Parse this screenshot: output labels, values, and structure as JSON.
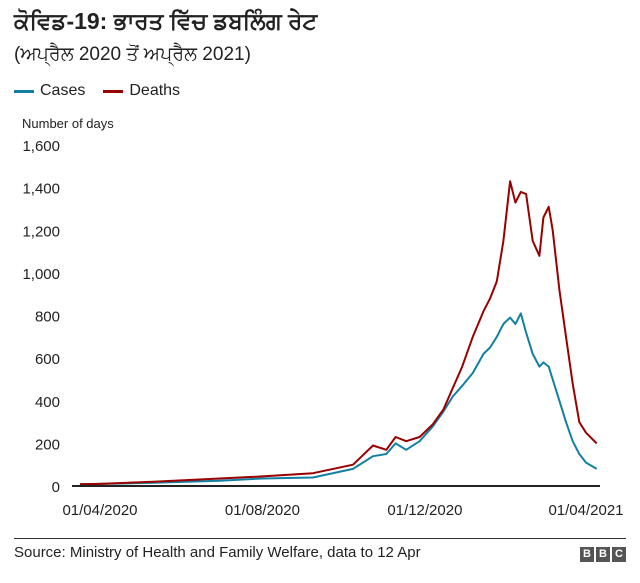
{
  "header": {
    "title": "ਕੋਵਿਡ-19: ਭਾਰਤ ਵਿੱਚ ਡਬਲਿੰਗ ਰੇਟ",
    "subtitle": "(ਅਪ੍ਰੈਲ 2020 ਤੋਂ ਅਪ੍ਰੈਲ 2021)"
  },
  "footer": {
    "source": "Source: Ministry of Health and Family Welfare, data to 12 Apr",
    "logo_letters": [
      "B",
      "B",
      "C"
    ]
  },
  "chart_data": {
    "type": "line",
    "title": "ਕੋਵਿਡ-19: ਭਾਰਤ ਵਿੱਚ ਡਬਲਿੰਗ ਰੇਟ",
    "ylabel": "Number of days",
    "xlabel": "",
    "x_unit": "days since 01/04/2020",
    "xlim": [
      -18,
      376
    ],
    "ylim": [
      0,
      1600
    ],
    "yticks": [
      0,
      200,
      400,
      600,
      800,
      1000,
      1200,
      1400,
      1600
    ],
    "ytick_labels": [
      "0",
      "200",
      "400",
      "600",
      "800",
      "1,000",
      "1,200",
      "1,400",
      "1,600"
    ],
    "xticks": [
      0,
      122,
      244,
      365
    ],
    "xtick_labels": [
      "01/04/2020",
      "01/08/2020",
      "01/12/2020",
      "01/04/2021"
    ],
    "grid": false,
    "legend": "top-left",
    "x": [
      -15,
      0,
      40,
      90,
      122,
      160,
      190,
      205,
      215,
      222,
      230,
      240,
      250,
      258,
      265,
      272,
      280,
      288,
      293,
      298,
      303,
      308,
      312,
      316,
      320,
      325,
      330,
      333,
      337,
      340,
      345,
      350,
      355,
      360,
      365,
      373
    ],
    "series": [
      {
        "name": "Cases",
        "color": "#1380a1",
        "values": [
          8,
          10,
          15,
          25,
          35,
          40,
          80,
          140,
          150,
          200,
          170,
          210,
          280,
          350,
          420,
          470,
          530,
          620,
          650,
          700,
          760,
          790,
          760,
          810,
          720,
          620,
          560,
          580,
          560,
          500,
          400,
          300,
          210,
          150,
          110,
          80
        ]
      },
      {
        "name": "Deaths",
        "color": "#990000",
        "values": [
          8,
          10,
          20,
          35,
          45,
          60,
          100,
          190,
          170,
          230,
          210,
          230,
          290,
          360,
          460,
          560,
          700,
          820,
          880,
          960,
          1150,
          1430,
          1330,
          1380,
          1370,
          1150,
          1080,
          1260,
          1310,
          1200,
          920,
          700,
          480,
          300,
          250,
          200
        ]
      }
    ]
  }
}
